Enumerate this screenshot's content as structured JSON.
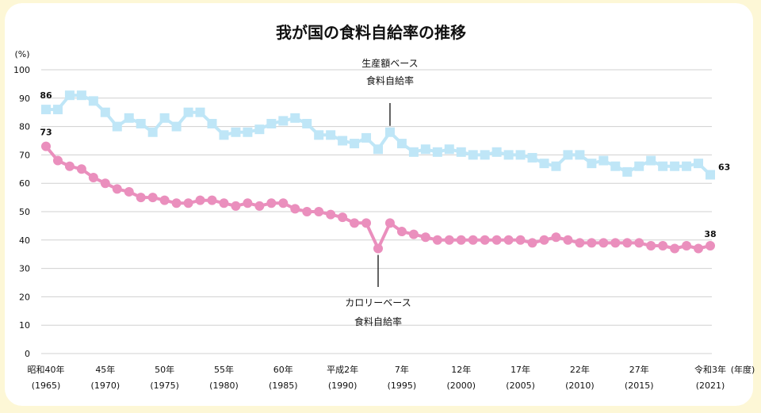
{
  "chart_data": {
    "type": "line",
    "title": "我が国の食料自給率の推移",
    "ylabel": "(%)",
    "xunit": "(年度)",
    "ylim": [
      0,
      100
    ],
    "yticks": [
      0,
      10,
      20,
      30,
      40,
      50,
      60,
      70,
      80,
      90,
      100
    ],
    "grid": true,
    "x": [
      1965,
      1966,
      1967,
      1968,
      1969,
      1970,
      1971,
      1972,
      1973,
      1974,
      1975,
      1976,
      1977,
      1978,
      1979,
      1980,
      1981,
      1982,
      1983,
      1984,
      1985,
      1986,
      1987,
      1988,
      1989,
      1990,
      1991,
      1992,
      1993,
      1994,
      1995,
      1996,
      1997,
      1998,
      1999,
      2000,
      2001,
      2002,
      2003,
      2004,
      2005,
      2006,
      2007,
      2008,
      2009,
      2010,
      2011,
      2012,
      2013,
      2014,
      2015,
      2016,
      2017,
      2018,
      2019,
      2020,
      2021
    ],
    "xtick_labels": [
      {
        "x": 1965,
        "era": "昭和40年",
        "year": "(1965)"
      },
      {
        "x": 1970,
        "era": "45年",
        "year": "(1970)"
      },
      {
        "x": 1975,
        "era": "50年",
        "year": "(1975)"
      },
      {
        "x": 1980,
        "era": "55年",
        "year": "(1980)"
      },
      {
        "x": 1985,
        "era": "60年",
        "year": "(1985)"
      },
      {
        "x": 1990,
        "era": "平成2年",
        "year": "(1990)"
      },
      {
        "x": 1995,
        "era": "7年",
        "year": "(1995)"
      },
      {
        "x": 2000,
        "era": "12年",
        "year": "(2000)"
      },
      {
        "x": 2005,
        "era": "17年",
        "year": "(2005)"
      },
      {
        "x": 2010,
        "era": "22年",
        "year": "(2010)"
      },
      {
        "x": 2015,
        "era": "27年",
        "year": "(2015)"
      },
      {
        "x": 2021,
        "era": "令和3年",
        "year": "(2021)"
      }
    ],
    "series": [
      {
        "name": "生産額ベース 食料自給率",
        "label_lines": [
          "生産額ベース",
          "食料自給率"
        ],
        "color": "#bfe6f7",
        "marker": "square",
        "values": [
          86,
          86,
          91,
          91,
          89,
          85,
          80,
          83,
          81,
          78,
          83,
          80,
          85,
          85,
          81,
          77,
          78,
          78,
          79,
          81,
          82,
          83,
          81,
          77,
          77,
          75,
          74,
          76,
          72,
          78,
          74,
          71,
          72,
          71,
          72,
          71,
          70,
          70,
          71,
          70,
          70,
          69,
          67,
          66,
          70,
          70,
          67,
          68,
          66,
          64,
          66,
          68,
          66,
          66,
          66,
          67,
          63
        ],
        "data_labels": [
          {
            "x": 1965,
            "text": "86"
          },
          {
            "x": 2021,
            "text": "63"
          }
        ],
        "annotation_x": 1994
      },
      {
        "name": "カロリーベース 食料自給率",
        "label_lines": [
          "カロリーベース",
          "食料自給率"
        ],
        "color": "#ea8fbd",
        "marker": "circle",
        "values": [
          73,
          68,
          66,
          65,
          62,
          60,
          58,
          57,
          55,
          55,
          54,
          53,
          53,
          54,
          54,
          53,
          52,
          53,
          52,
          53,
          53,
          51,
          50,
          50,
          49,
          48,
          46,
          46,
          37,
          46,
          43,
          42,
          41,
          40,
          40,
          40,
          40,
          40,
          40,
          40,
          40,
          39,
          40,
          41,
          40,
          39,
          39,
          39,
          39,
          39,
          39,
          38,
          38,
          37,
          38,
          37,
          38
        ],
        "data_labels": [
          {
            "x": 1965,
            "text": "73"
          },
          {
            "x": 2021,
            "text": "38"
          }
        ],
        "annotation_x": 1993
      }
    ]
  }
}
